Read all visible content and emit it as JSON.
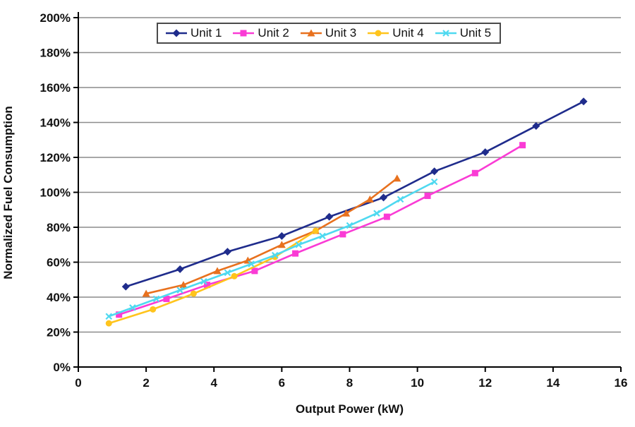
{
  "chart_data": {
    "type": "line",
    "title": "",
    "xlabel": "Output Power (kW)",
    "ylabel": "Normalized Fuel Consumption",
    "xlim": [
      0,
      16
    ],
    "xtick_step": 2,
    "x_tick_labels": [
      "0",
      "2",
      "4",
      "6",
      "8",
      "10",
      "12",
      "14",
      "16"
    ],
    "ylim_pct": [
      0,
      200
    ],
    "ytick_step_pct": 20,
    "y_tick_labels": [
      "0%",
      "20%",
      "40%",
      "60%",
      "80%",
      "100%",
      "120%",
      "140%",
      "160%",
      "180%",
      "200%"
    ],
    "grid": "horizontal-gray",
    "legend_position": "top-center",
    "series": [
      {
        "name": "Unit 1",
        "color": "#1F2C8C",
        "marker": "diamond",
        "points": [
          [
            1.4,
            46
          ],
          [
            3.0,
            56
          ],
          [
            4.4,
            66
          ],
          [
            6.0,
            75
          ],
          [
            7.4,
            86
          ],
          [
            9.0,
            97
          ],
          [
            10.5,
            112
          ],
          [
            12.0,
            123
          ],
          [
            13.5,
            138
          ],
          [
            14.9,
            152
          ]
        ]
      },
      {
        "name": "Unit 2",
        "color": "#FA3BD5",
        "marker": "square",
        "points": [
          [
            1.2,
            30
          ],
          [
            2.6,
            39
          ],
          [
            3.8,
            47
          ],
          [
            5.2,
            55
          ],
          [
            6.4,
            65
          ],
          [
            7.8,
            76
          ],
          [
            9.1,
            86
          ],
          [
            10.3,
            98
          ],
          [
            11.7,
            111
          ],
          [
            13.1,
            127
          ]
        ]
      },
      {
        "name": "Unit 3",
        "color": "#E8711E",
        "marker": "triangle",
        "points": [
          [
            2.0,
            42
          ],
          [
            3.1,
            47
          ],
          [
            4.1,
            55
          ],
          [
            5.0,
            61
          ],
          [
            6.0,
            70
          ],
          [
            7.0,
            78
          ],
          [
            7.9,
            88
          ],
          [
            8.6,
            96
          ],
          [
            9.4,
            108
          ]
        ]
      },
      {
        "name": "Unit 4",
        "color": "#FFC41D",
        "marker": "circle",
        "points": [
          [
            0.9,
            25
          ],
          [
            2.2,
            33
          ],
          [
            3.4,
            42
          ],
          [
            4.6,
            52
          ],
          [
            5.8,
            63
          ],
          [
            7.0,
            78
          ]
        ]
      },
      {
        "name": "Unit 5",
        "color": "#4FD9F0",
        "marker": "x",
        "points": [
          [
            0.9,
            29
          ],
          [
            1.6,
            34
          ],
          [
            2.3,
            39
          ],
          [
            3.0,
            44
          ],
          [
            3.7,
            49
          ],
          [
            4.4,
            54
          ],
          [
            5.1,
            59
          ],
          [
            5.8,
            64
          ],
          [
            6.5,
            70
          ],
          [
            7.2,
            75
          ],
          [
            8.0,
            81
          ],
          [
            8.8,
            88
          ],
          [
            9.5,
            96
          ],
          [
            10.5,
            106
          ]
        ]
      }
    ]
  }
}
